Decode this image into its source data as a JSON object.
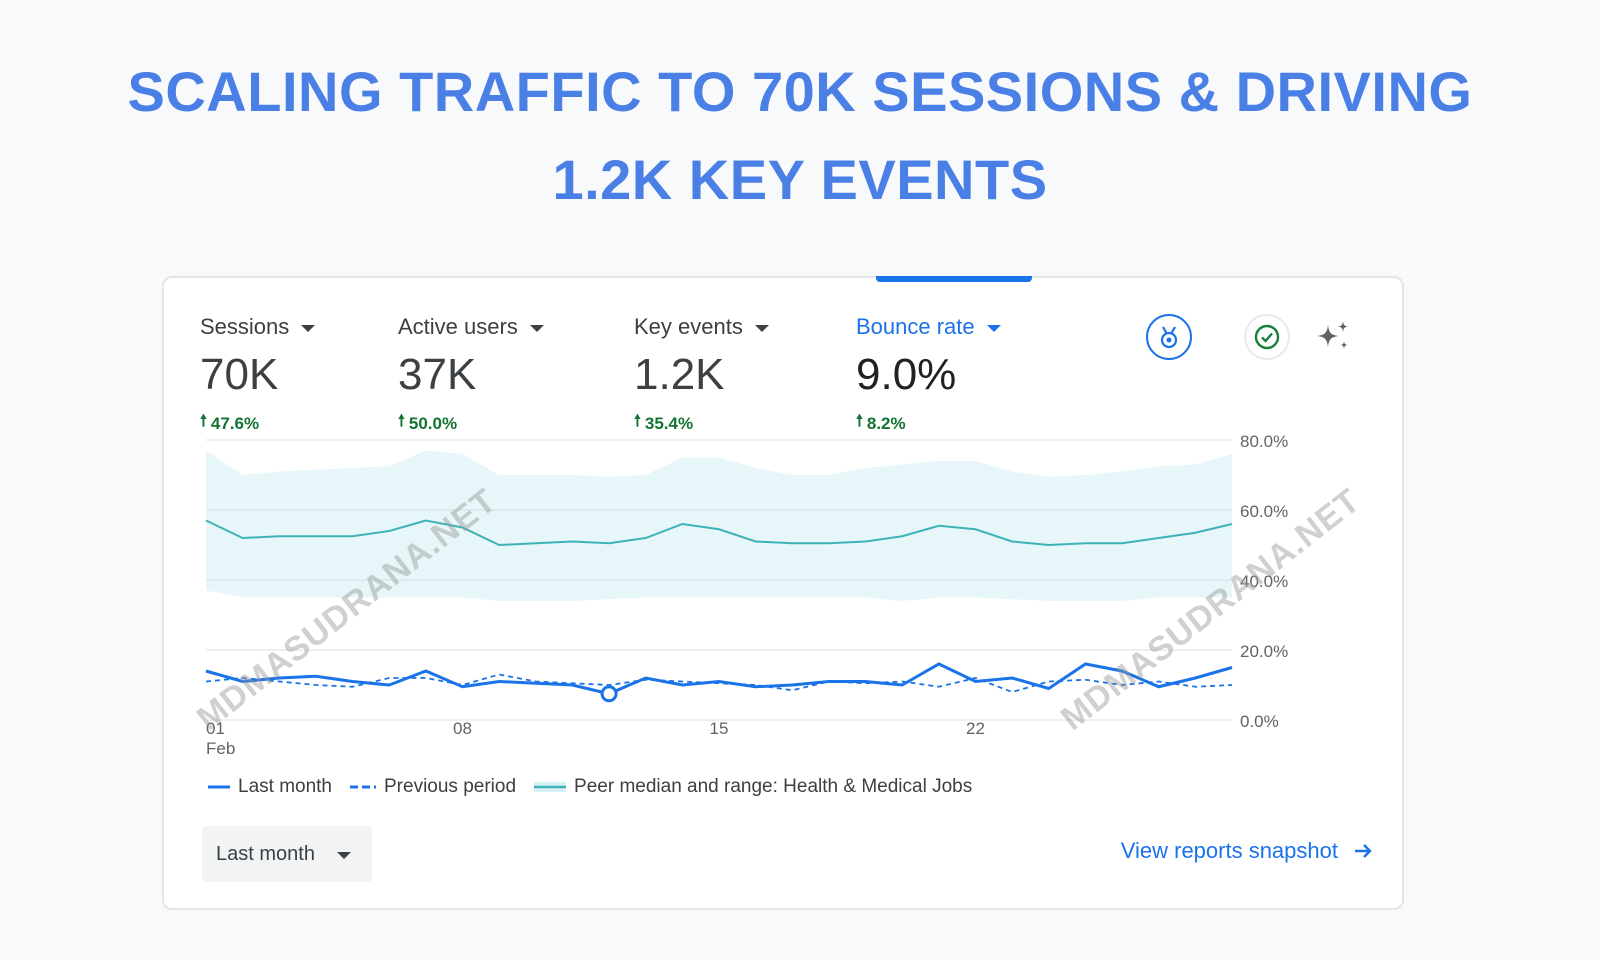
{
  "headline": {
    "line1": "SCALING TRAFFIC TO 70K SESSIONS & DRIVING",
    "line2": "1.2K KEY EVENTS"
  },
  "metrics": [
    {
      "label": "Sessions",
      "value": "70K",
      "change": "47.6%",
      "selected": false
    },
    {
      "label": "Active users",
      "value": "37K",
      "change": "50.0%",
      "selected": false
    },
    {
      "label": "Key events",
      "value": "1.2K",
      "change": "35.4%",
      "selected": false
    },
    {
      "label": "Bounce rate",
      "value": "9.0%",
      "change": "8.2%",
      "selected": true
    }
  ],
  "icons": {
    "benchmark": "benchmark-icon",
    "verified": "check-circle-icon",
    "insights": "sparkle-icon"
  },
  "colors": {
    "accent": "#1a73e8",
    "title": "#4a7fe6",
    "positive": "#137333",
    "peer_line": "#3fb2b8",
    "peer_band": "#e4f6f8"
  },
  "chart_data": {
    "type": "line",
    "y_ticks": [
      "80.0%",
      "60.0%",
      "40.0%",
      "20.0%",
      "0.0%"
    ],
    "ylim": [
      0,
      80
    ],
    "x_tick_labels": [
      {
        "day": 1,
        "label": "01",
        "sub": "Feb"
      },
      {
        "day": 8,
        "label": "08",
        "sub": ""
      },
      {
        "day": 15,
        "label": "15",
        "sub": ""
      },
      {
        "day": 22,
        "label": "22",
        "sub": ""
      }
    ],
    "x": [
      1,
      2,
      3,
      4,
      5,
      6,
      7,
      8,
      9,
      10,
      11,
      12,
      13,
      14,
      15,
      16,
      17,
      18,
      19,
      20,
      21,
      22,
      23,
      24,
      25,
      26,
      27,
      28,
      29
    ],
    "series": [
      {
        "name": "Last month",
        "values": [
          14,
          11,
          12,
          12.5,
          11,
          10,
          14,
          9.5,
          11,
          10.5,
          10,
          7.5,
          12,
          10,
          11,
          9.5,
          10,
          11,
          11,
          10,
          16,
          11,
          12,
          9,
          16,
          14,
          9.5,
          12,
          15
        ]
      },
      {
        "name": "Previous period",
        "values": [
          11,
          12,
          11,
          10,
          9.5,
          12,
          12,
          10,
          13,
          11,
          10.5,
          10,
          11.5,
          11,
          10.5,
          10,
          8.5,
          11,
          10.5,
          11,
          9.5,
          12,
          8,
          11,
          11.5,
          10,
          11,
          9.5,
          10
        ]
      }
    ],
    "peer": {
      "name": "Peer median and range: Health & Medical Jobs",
      "median": [
        57,
        52,
        52.5,
        52.5,
        52.5,
        54,
        57,
        55,
        50,
        50.5,
        51,
        50.5,
        52,
        56,
        54.5,
        51,
        50.5,
        50.5,
        51,
        52.5,
        55.5,
        54.5,
        51,
        50,
        50.5,
        50.5,
        52,
        53.5,
        56
      ],
      "upper": [
        77,
        70,
        71,
        71.5,
        72,
        72.5,
        77,
        76,
        70,
        70,
        70,
        69.5,
        70,
        75,
        75,
        72,
        70,
        70,
        72,
        73,
        74,
        74,
        71,
        69.5,
        70,
        71,
        72.5,
        73,
        76
      ],
      "lower": [
        37,
        35,
        35,
        35,
        35,
        35,
        35,
        35,
        34,
        34,
        34,
        34.5,
        35,
        35,
        35,
        35,
        35,
        35,
        35,
        34,
        35,
        35,
        34.5,
        34,
        34,
        34,
        35,
        35,
        35
      ]
    },
    "highlight_day": 12
  },
  "legend": {
    "last_month": "Last month",
    "previous_period": "Previous period",
    "peer": "Peer median and range: Health & Medical Jobs"
  },
  "range_select": {
    "value": "Last month"
  },
  "snapshot_link": {
    "label": "View reports snapshot"
  },
  "watermark": "MDMASUDRANA.NET"
}
